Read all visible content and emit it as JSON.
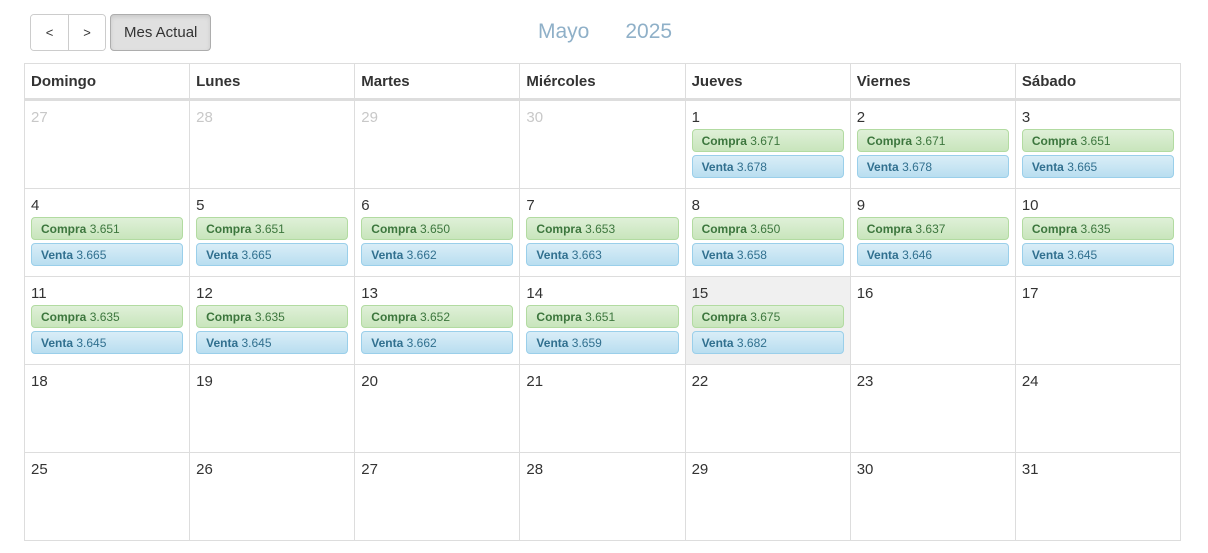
{
  "toolbar": {
    "prev_label": "<",
    "next_label": ">",
    "today_label": "Mes Actual"
  },
  "header": {
    "month": "Mayo",
    "year": "2025"
  },
  "weekdays": [
    "Domingo",
    "Lunes",
    "Martes",
    "Miércoles",
    "Jueves",
    "Viernes",
    "Sábado"
  ],
  "labels": {
    "buy": "Compra",
    "sell": "Venta"
  },
  "colors": {
    "buy_bg": "#dff0d8",
    "sell_bg": "#d9edf7",
    "title": "#8fb0c8"
  },
  "weeks": [
    [
      {
        "day": "27",
        "other": true
      },
      {
        "day": "28",
        "other": true
      },
      {
        "day": "29",
        "other": true
      },
      {
        "day": "30",
        "other": true
      },
      {
        "day": "1",
        "buy": "3.671",
        "sell": "3.678"
      },
      {
        "day": "2",
        "buy": "3.671",
        "sell": "3.678"
      },
      {
        "day": "3",
        "buy": "3.651",
        "sell": "3.665"
      }
    ],
    [
      {
        "day": "4",
        "buy": "3.651",
        "sell": "3.665"
      },
      {
        "day": "5",
        "buy": "3.651",
        "sell": "3.665"
      },
      {
        "day": "6",
        "buy": "3.650",
        "sell": "3.662"
      },
      {
        "day": "7",
        "buy": "3.653",
        "sell": "3.663"
      },
      {
        "day": "8",
        "buy": "3.650",
        "sell": "3.658"
      },
      {
        "day": "9",
        "buy": "3.637",
        "sell": "3.646"
      },
      {
        "day": "10",
        "buy": "3.635",
        "sell": "3.645"
      }
    ],
    [
      {
        "day": "11",
        "buy": "3.635",
        "sell": "3.645"
      },
      {
        "day": "12",
        "buy": "3.635",
        "sell": "3.645"
      },
      {
        "day": "13",
        "buy": "3.652",
        "sell": "3.662"
      },
      {
        "day": "14",
        "buy": "3.651",
        "sell": "3.659"
      },
      {
        "day": "15",
        "buy": "3.675",
        "sell": "3.682",
        "today": true
      },
      {
        "day": "16"
      },
      {
        "day": "17"
      }
    ],
    [
      {
        "day": "18"
      },
      {
        "day": "19"
      },
      {
        "day": "20"
      },
      {
        "day": "21"
      },
      {
        "day": "22"
      },
      {
        "day": "23"
      },
      {
        "day": "24"
      }
    ],
    [
      {
        "day": "25"
      },
      {
        "day": "26"
      },
      {
        "day": "27"
      },
      {
        "day": "28"
      },
      {
        "day": "29"
      },
      {
        "day": "30"
      },
      {
        "day": "31"
      }
    ]
  ]
}
